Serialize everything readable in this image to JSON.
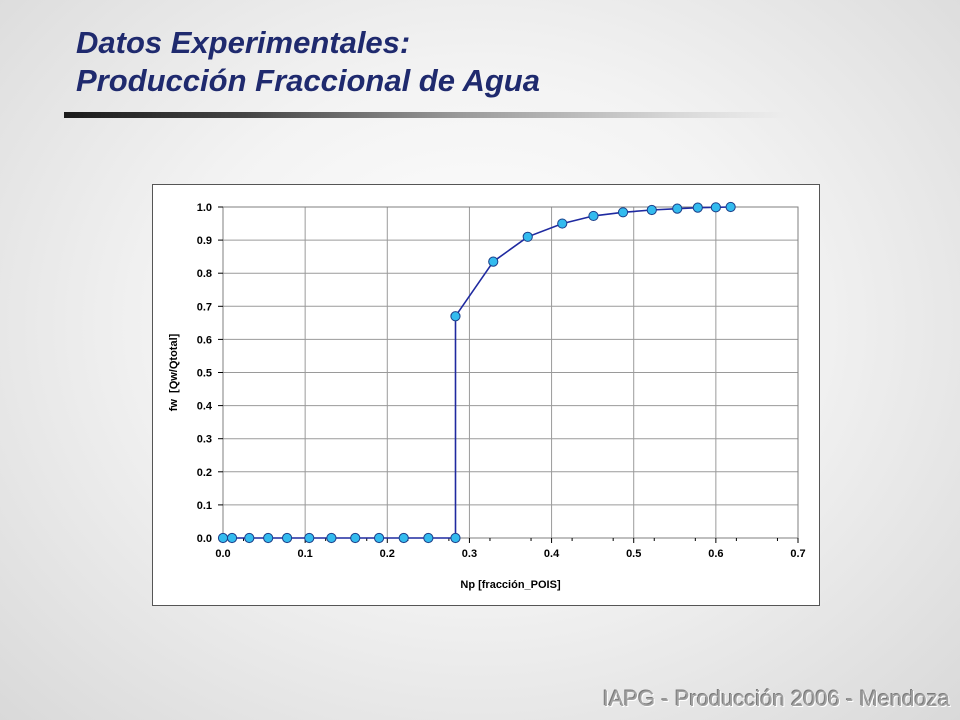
{
  "slide": {
    "title_line1": "Datos Experimentales:",
    "title_line2": "Producción Fraccional de Agua",
    "footer": "IAPG - Producción 2006 - Mendoza",
    "colors": {
      "title": "#1f2a6e",
      "line": "#1f2aa0",
      "marker": "#33bbee"
    }
  },
  "chart_data": {
    "type": "line",
    "xlabel": "Np [fracción_POIS]",
    "ylabel": "fw  [Qw/Qtotal]",
    "xlim": [
      0,
      0.7
    ],
    "ylim": [
      0,
      1
    ],
    "xticks": [
      "0.0",
      "0.1",
      "0.2",
      "0.3",
      "0.4",
      "0.5",
      "0.6",
      "0.7"
    ],
    "yticks": [
      "0.0",
      "0.1",
      "0.2",
      "0.3",
      "0.4",
      "0.5",
      "0.6",
      "0.7",
      "0.8",
      "0.9",
      "1.0"
    ],
    "grid": true,
    "series": [
      {
        "x": [
          0.0,
          0.011,
          0.032,
          0.055,
          0.078,
          0.105,
          0.132,
          0.161,
          0.19,
          0.22,
          0.25,
          0.283,
          0.283,
          0.329,
          0.371,
          0.413,
          0.451,
          0.487,
          0.522,
          0.553,
          0.578,
          0.6,
          0.618
        ],
        "y": [
          0.0,
          0.0,
          0.0,
          0.0,
          0.0,
          0.0,
          0.0,
          0.0,
          0.0,
          0.0,
          0.0,
          0.0,
          0.67,
          0.835,
          0.91,
          0.95,
          0.973,
          0.984,
          0.991,
          0.995,
          0.998,
          0.999,
          1.0
        ]
      }
    ]
  }
}
